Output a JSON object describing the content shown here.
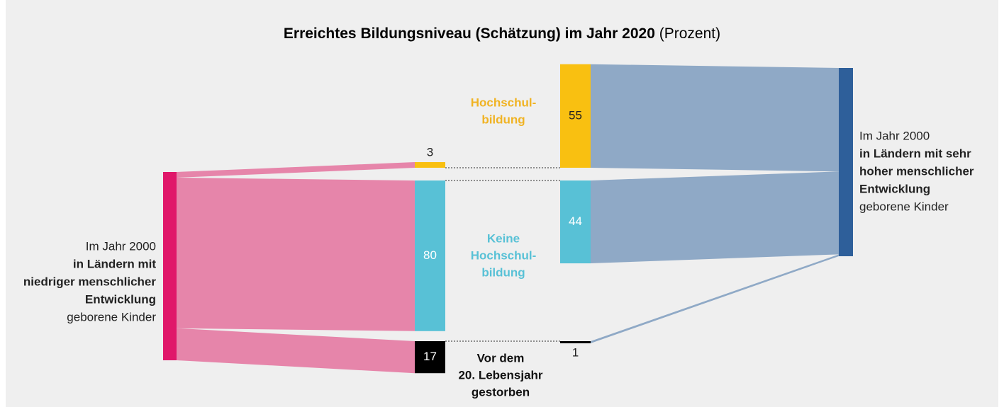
{
  "chart_data": {
    "type": "sankey",
    "title": "Erreichtes Bildungsniveau (Schätzung) im Jahr 2020",
    "title_suffix": "(Prozent)",
    "categories": [
      [
        "Hochschul-",
        "bildung"
      ],
      [
        "Keine",
        "Hochschul-",
        "bildung"
      ],
      [
        "Vor dem",
        "20. Lebensjahr",
        "gestorben"
      ]
    ],
    "category_colors": [
      "#f9c011",
      "#58c1d6",
      "#000000"
    ],
    "category_label_colors": [
      "#f0b323",
      "#58c1d6",
      "#111111"
    ],
    "series": [
      {
        "name_top": "Im Jahr 2000",
        "name_bold": [
          "in Ländern mit",
          "niedriger menschlicher",
          "Entwicklung"
        ],
        "name_bottom": "geborene Kinder",
        "color": "#e0176a",
        "flow_color": "#e685aa",
        "values": [
          3,
          80,
          17
        ]
      },
      {
        "name_top": "Im Jahr 2000",
        "name_bold": [
          "in Ländern mit sehr",
          "hoher menschlicher",
          "Entwicklung"
        ],
        "name_bottom": "geborene Kinder",
        "color": "#2e5f9a",
        "flow_color": "#8fa9c6",
        "values": [
          55,
          44,
          1
        ]
      }
    ]
  }
}
